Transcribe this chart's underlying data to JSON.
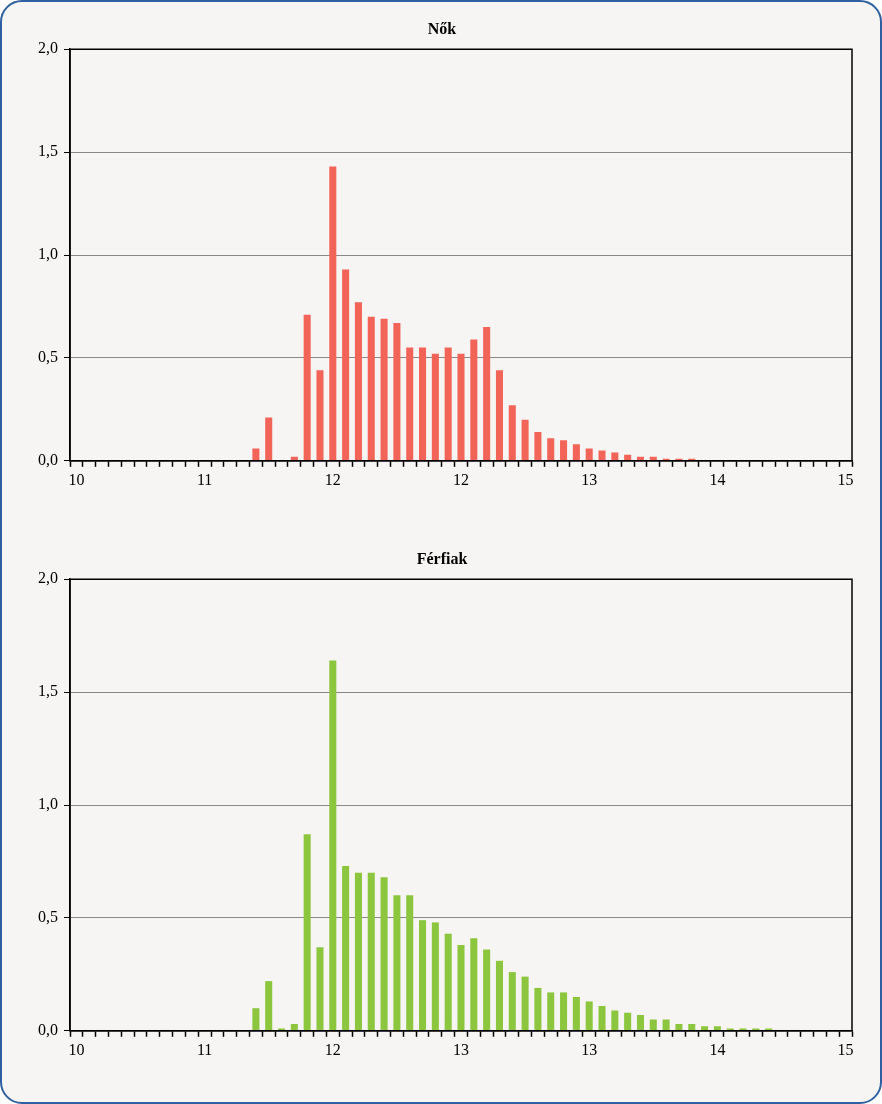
{
  "chart_data": [
    {
      "type": "bar",
      "title": "Nők",
      "categories": [
        "10",
        null,
        null,
        null,
        null,
        null,
        null,
        null,
        null,
        null,
        "11",
        null,
        null,
        null,
        null,
        null,
        null,
        null,
        null,
        null,
        "12",
        null,
        null,
        null,
        null,
        null,
        null,
        null,
        null,
        null,
        "12",
        null,
        null,
        null,
        null,
        null,
        null,
        null,
        null,
        null,
        "13",
        null,
        null,
        null,
        null,
        null,
        null,
        null,
        null,
        null,
        "14",
        null,
        null,
        null,
        null,
        null,
        null,
        null,
        null,
        null,
        "15"
      ],
      "values": [
        0,
        0,
        0,
        0,
        0,
        0,
        0,
        0,
        0,
        0,
        0,
        0,
        0,
        0,
        0.06,
        0.21,
        0,
        0.02,
        0.71,
        0.44,
        1.43,
        0.93,
        0.77,
        0.7,
        0.69,
        0.67,
        0.55,
        0.55,
        0.52,
        0.55,
        0.52,
        0.59,
        0.65,
        0.44,
        0.27,
        0.2,
        0.14,
        0.11,
        0.1,
        0.08,
        0.06,
        0.05,
        0.04,
        0.03,
        0.02,
        0.02,
        0.01,
        0.01,
        0.01,
        0,
        0,
        0,
        0,
        0,
        0,
        0,
        0,
        0,
        0,
        0,
        0
      ],
      "color": "#f26458",
      "ylim": [
        0,
        2
      ],
      "yticks": [
        {
          "value": 0,
          "label": "0,0"
        },
        {
          "value": 0.5,
          "label": "0,5"
        },
        {
          "value": 1,
          "label": "1,0"
        },
        {
          "value": 1.5,
          "label": "1,5"
        },
        {
          "value": 2,
          "label": "2,0"
        }
      ],
      "grid": "y"
    },
    {
      "type": "bar",
      "title": "Férfiak",
      "categories": [
        "10",
        null,
        null,
        null,
        null,
        null,
        null,
        null,
        null,
        null,
        "11",
        null,
        null,
        null,
        null,
        null,
        null,
        null,
        null,
        null,
        "12",
        null,
        null,
        null,
        null,
        null,
        null,
        null,
        null,
        null,
        "13",
        null,
        null,
        null,
        null,
        null,
        null,
        null,
        null,
        null,
        "13",
        null,
        null,
        null,
        null,
        null,
        null,
        null,
        null,
        null,
        "14",
        null,
        null,
        null,
        null,
        null,
        null,
        null,
        null,
        null,
        "15"
      ],
      "values": [
        0,
        0,
        0,
        0,
        0,
        0,
        0,
        0,
        0,
        0,
        0,
        0,
        0,
        0,
        0.1,
        0.22,
        0.01,
        0.03,
        0.87,
        0.37,
        1.64,
        0.73,
        0.7,
        0.7,
        0.68,
        0.6,
        0.6,
        0.49,
        0.48,
        0.43,
        0.38,
        0.41,
        0.36,
        0.31,
        0.26,
        0.24,
        0.19,
        0.17,
        0.17,
        0.15,
        0.13,
        0.11,
        0.09,
        0.08,
        0.07,
        0.05,
        0.05,
        0.03,
        0.03,
        0.02,
        0.02,
        0.01,
        0.01,
        0.01,
        0.01,
        0,
        0,
        0,
        0,
        0,
        0
      ],
      "color": "#8cc63f",
      "ylim": [
        0,
        2
      ],
      "yticks": [
        {
          "value": 0,
          "label": "0,0"
        },
        {
          "value": 0.5,
          "label": "0,5"
        },
        {
          "value": 1,
          "label": "1,0"
        },
        {
          "value": 1.5,
          "label": "1,5"
        },
        {
          "value": 2,
          "label": "2,0"
        }
      ],
      "grid": "y"
    }
  ]
}
